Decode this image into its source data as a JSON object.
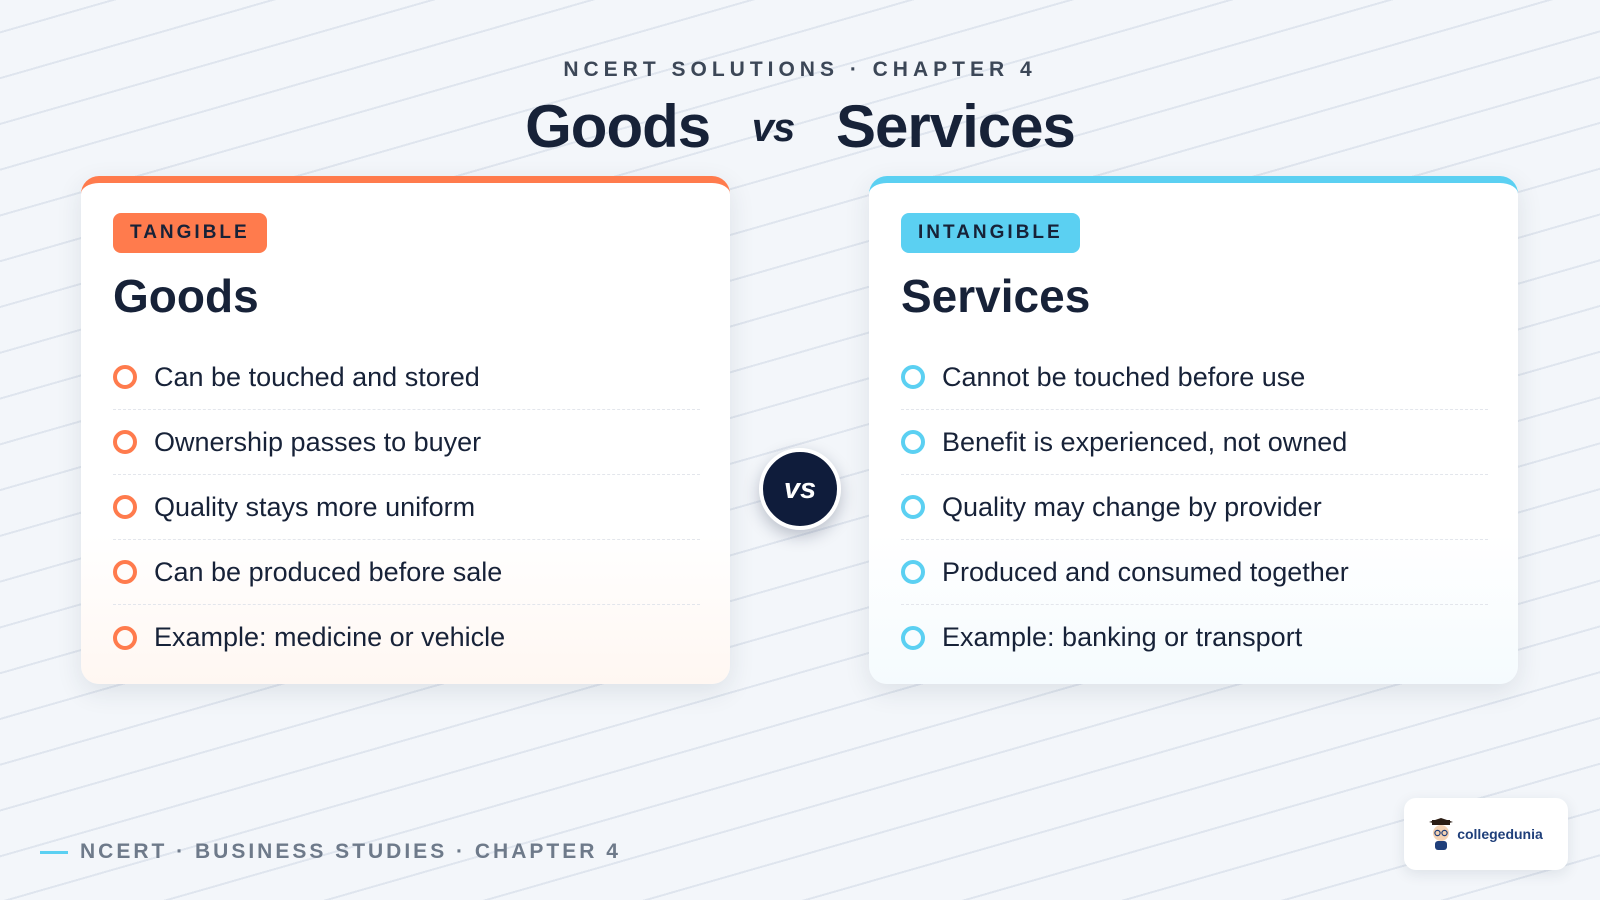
{
  "header": {
    "eyebrow": "NCERT SOLUTIONS · CHAPTER 4",
    "title_left": "Goods",
    "title_vs": "vs",
    "title_right": "Services"
  },
  "goods_card": {
    "badge": "TANGIBLE",
    "title": "Goods",
    "accent_color": "#ff7b4d",
    "items": [
      "Can be touched and stored",
      "Ownership passes to buyer",
      "Quality stays more uniform",
      "Can be produced before sale",
      "Example: medicine or vehicle"
    ]
  },
  "services_card": {
    "badge": "INTANGIBLE",
    "title": "Services",
    "accent_color": "#5bd0f2",
    "items": [
      "Cannot be touched before use",
      "Benefit is experienced, not owned",
      "Quality may change by provider",
      "Produced and consumed together",
      "Example: banking or transport"
    ]
  },
  "vs_badge": "vs",
  "footer": {
    "text": "NCERT · BUSINESS STUDIES · CHAPTER 4"
  },
  "logo": {
    "text": "collegedunia"
  }
}
